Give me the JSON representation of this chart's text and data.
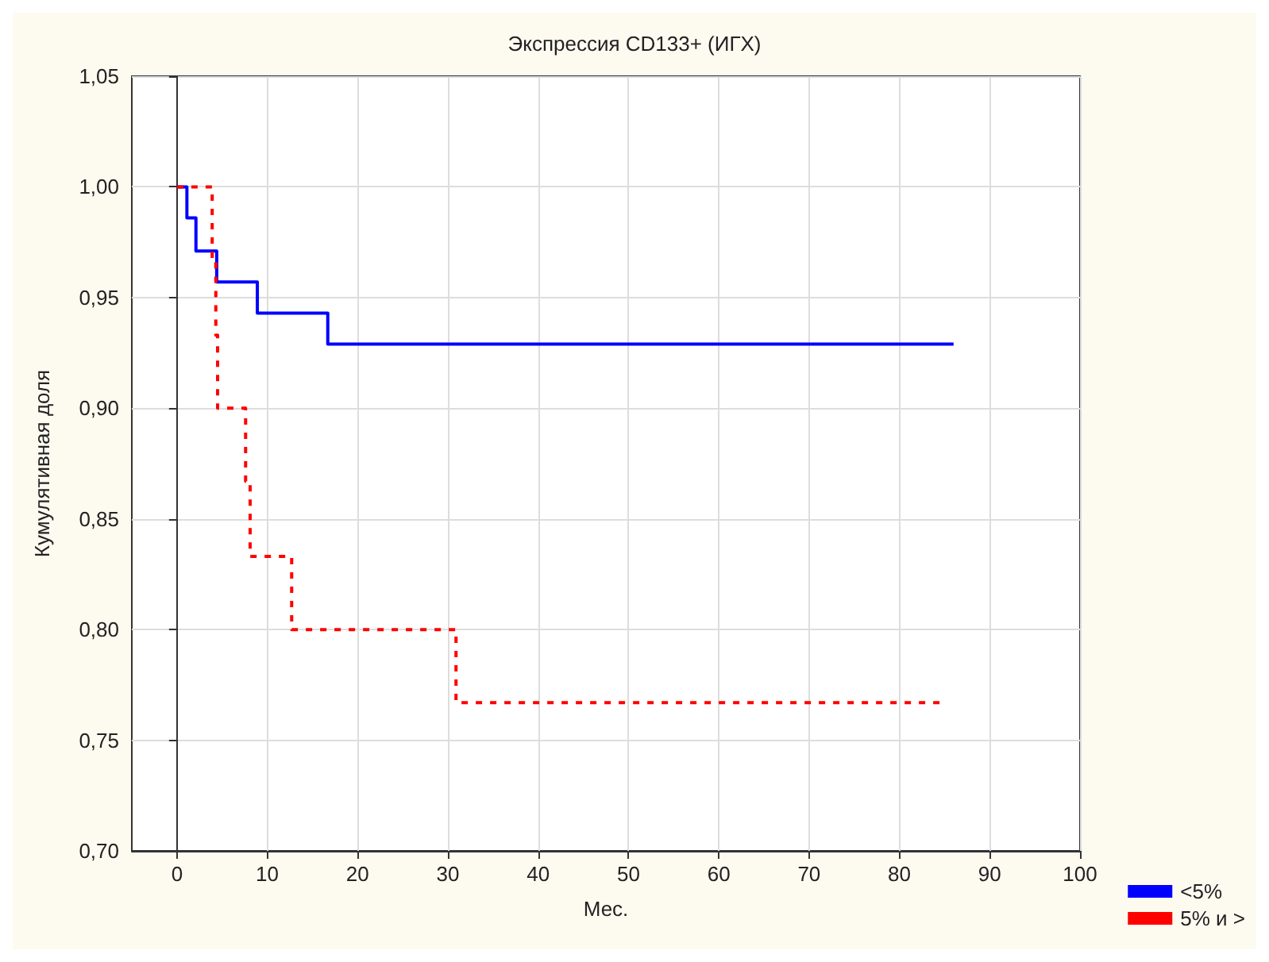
{
  "chart_data": {
    "type": "step",
    "title": "Экспрессия CD133+ (ИГХ)",
    "xlabel": "Мес.",
    "ylabel": "Кумулятивная доля",
    "xlim": [
      -5,
      100
    ],
    "xticks": [
      0,
      10,
      20,
      30,
      40,
      50,
      60,
      70,
      80,
      90,
      100
    ],
    "ylim": [
      0.7,
      1.05
    ],
    "yticks": [
      {
        "value": 0.7,
        "label": "0,70"
      },
      {
        "value": 0.75,
        "label": "0,75"
      },
      {
        "value": 0.8,
        "label": "0,80"
      },
      {
        "value": 0.85,
        "label": "0,85"
      },
      {
        "value": 0.9,
        "label": "0,90"
      },
      {
        "value": 0.95,
        "label": "0,95"
      },
      {
        "value": 1.0,
        "label": "1,00"
      },
      {
        "value": 1.05,
        "label": "1,05"
      }
    ],
    "grid": true,
    "legend": "bottom right",
    "series": [
      {
        "name": "<5%",
        "color": "#0000ff",
        "line_style": "solid",
        "x": [
          0,
          1.1,
          2.1,
          4.4,
          8.9,
          16.7,
          86
        ],
        "values": [
          1.0,
          0.986,
          0.971,
          0.957,
          0.943,
          0.929,
          0.929
        ]
      },
      {
        "name": "5% и >",
        "color": "#ff0000",
        "line_style": "dashed",
        "x": [
          0,
          3.9,
          4.3,
          4.5,
          7.6,
          8.1,
          12.7,
          30.9,
          84.7
        ],
        "values": [
          1.0,
          0.967,
          0.933,
          0.9,
          0.867,
          0.833,
          0.8,
          0.767,
          0.767
        ]
      }
    ]
  }
}
